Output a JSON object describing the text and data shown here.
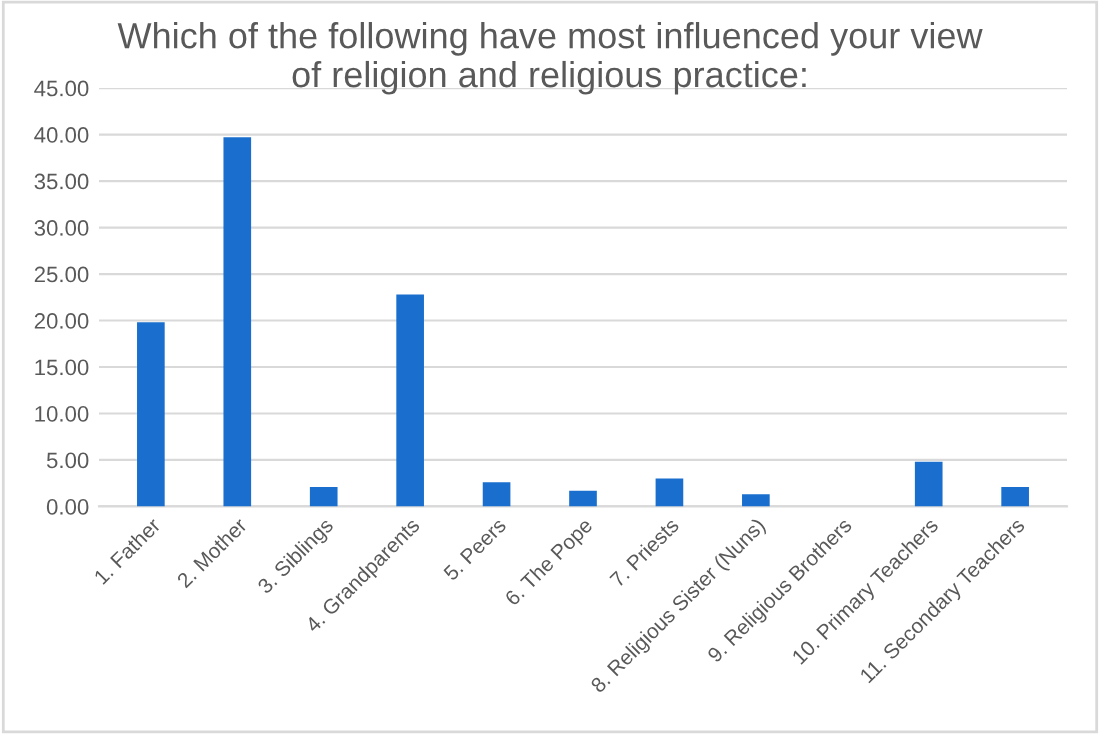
{
  "chart_data": {
    "type": "bar",
    "title": "Which of the following have most influenced your view\nof religion and religious practice:",
    "categories": [
      "1. Father",
      "2. Mother",
      "3. Siblings",
      "4. Grandparents",
      "5. Peers",
      "6. The Pope",
      "7. Priests",
      "8. Religious Sister (Nuns)",
      "9. Religious Brothers",
      "10. Primary Teachers",
      "11. Secondary Teachers"
    ],
    "values": [
      19.8,
      39.7,
      2.1,
      22.8,
      2.6,
      1.7,
      3.0,
      1.3,
      0,
      4.8,
      2.1
    ],
    "color": "#1a6fce",
    "ylim": [
      0,
      45
    ],
    "yticks": [
      {
        "value": 0,
        "label": "0.00"
      },
      {
        "value": 5,
        "label": "5.00"
      },
      {
        "value": 10,
        "label": "10.00"
      },
      {
        "value": 15,
        "label": "15.00"
      },
      {
        "value": 20,
        "label": "20.00"
      },
      {
        "value": 25,
        "label": "25.00"
      },
      {
        "value": 30,
        "label": "30.00"
      },
      {
        "value": 35,
        "label": "35.00"
      },
      {
        "value": 40,
        "label": "40.00"
      },
      {
        "value": 45,
        "label": "45.00"
      }
    ],
    "grid": "y",
    "legend": false
  }
}
